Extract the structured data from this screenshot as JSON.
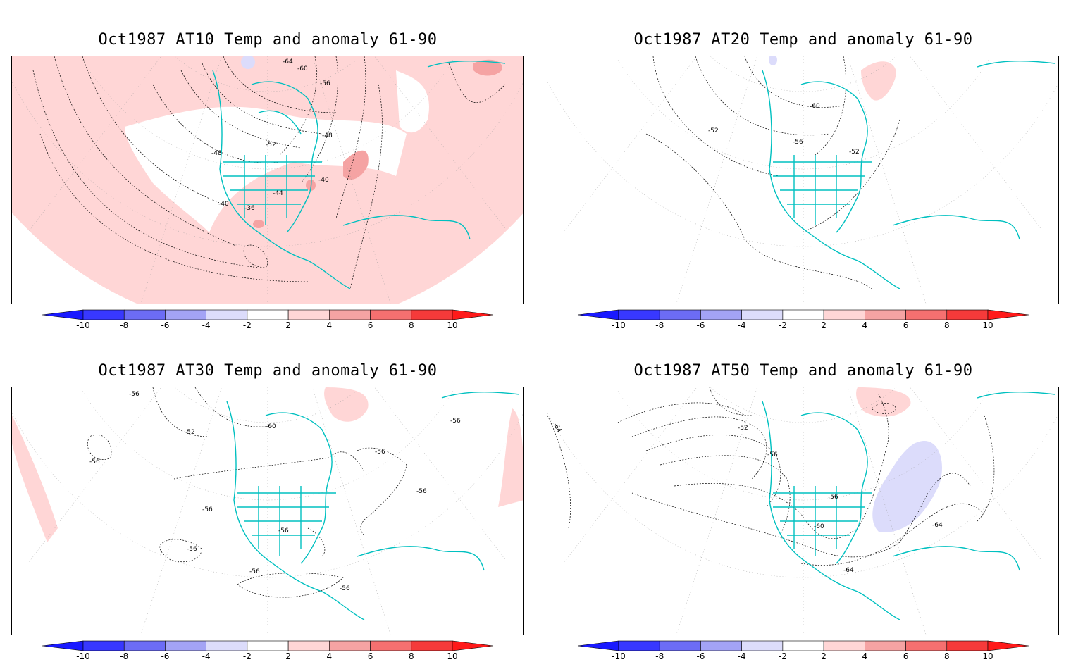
{
  "panels": [
    {
      "title": "Oct1987 AT10 Temp and anomaly 61-90",
      "contour_labels": [
        "-64",
        "-60",
        "-56",
        "-52",
        "-48",
        "-48",
        "-44",
        "-40",
        "-40",
        "-36"
      ],
      "anomaly": "mostly-positive"
    },
    {
      "title": "Oct1987 AT20 Temp and anomaly 61-90",
      "contour_labels": [
        "-60",
        "-56",
        "-52",
        "-52"
      ],
      "anomaly": "small-positive-ne"
    },
    {
      "title": "Oct1987 AT30 Temp and anomaly 61-90",
      "contour_labels": [
        "-56",
        "-52",
        "-60",
        "-56",
        "-56",
        "-56",
        "-56",
        "-56",
        "-56",
        "-56",
        "-56",
        "-56"
      ],
      "anomaly": "edges-positive"
    },
    {
      "title": "Oct1987 AT50 Temp and anomaly 61-90",
      "contour_labels": [
        "-64",
        "-52",
        "-56",
        "-56",
        "-60",
        "-64",
        "-64"
      ],
      "anomaly": "negative-atlantic"
    }
  ],
  "colorbar": {
    "tick_labels": [
      "-10",
      "-8",
      "-6",
      "-4",
      "-2",
      "2",
      "4",
      "6",
      "8",
      "10"
    ],
    "colors": [
      "#1a1aff",
      "#3838ff",
      "#6c6cf5",
      "#a3a3f5",
      "#dcdcfb",
      "#ffffff",
      "#ffd6d6",
      "#f5a3a3",
      "#f57070",
      "#f53a3a",
      "#ff1a1a"
    ]
  },
  "colors": {
    "coastline": "#00c0c0",
    "contour": "#000000",
    "grid": "#999999"
  }
}
